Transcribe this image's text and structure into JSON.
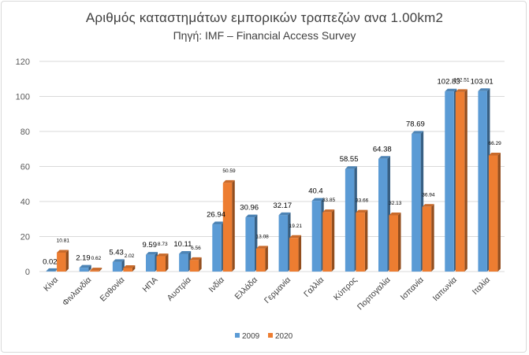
{
  "title": "Αριθμός καταστημάτων εμπορικών τραπεζών ανα 1.00km2",
  "subtitle": "Πηγή: IMF – Financial Access Survey",
  "chart_data": {
    "type": "bar",
    "title": "Αριθμός καταστημάτων εμπορικών τραπεζών ανα 1.00km2",
    "subtitle": "Πηγή: IMF – Financial Access Survey",
    "categories": [
      "Κίνα",
      "Φινλανδία",
      "Εσθονία",
      "ΗΠΑ",
      "Αυστρία",
      "Ινδία",
      "Ελλάδα",
      "Γερμανία",
      "Γαλλία",
      "Κύπρος",
      "Πορτογαλία",
      "Ισπανία",
      "Ιαπωνία",
      "Ιταλία"
    ],
    "series": [
      {
        "name": "2009",
        "color": "#5b9bd5",
        "values": [
          0.02,
          2.19,
          5.43,
          9.59,
          10.11,
          26.94,
          30.96,
          32.17,
          40.4,
          58.55,
          64.38,
          78.69,
          102.83,
          103.01
        ],
        "labels": [
          "0.02",
          "2.19",
          "5.43",
          "9.59",
          "10.11",
          "26.94",
          "30.96",
          "32.17",
          "40.4",
          "58.55",
          "64.38",
          "78.69",
          "102.83",
          "103.01"
        ]
      },
      {
        "name": "2020",
        "color": "#ed7d31",
        "values": [
          10.81,
          0.62,
          2.02,
          8.73,
          6.56,
          50.59,
          13.08,
          19.21,
          33.85,
          33.66,
          32.13,
          36.94,
          102.51,
          66.29
        ],
        "labels": [
          "10.81",
          "0.62",
          "2.02",
          "8.73",
          "6.56",
          "50.59",
          "13.08",
          "19.21",
          "33.85",
          "33.66",
          "32.13",
          "36.94",
          "102.51",
          "66.29"
        ]
      }
    ],
    "ylim": [
      0,
      120
    ],
    "yticks": [
      0,
      20,
      40,
      60,
      80,
      100,
      120
    ],
    "grid": true,
    "legend": "bottom"
  }
}
